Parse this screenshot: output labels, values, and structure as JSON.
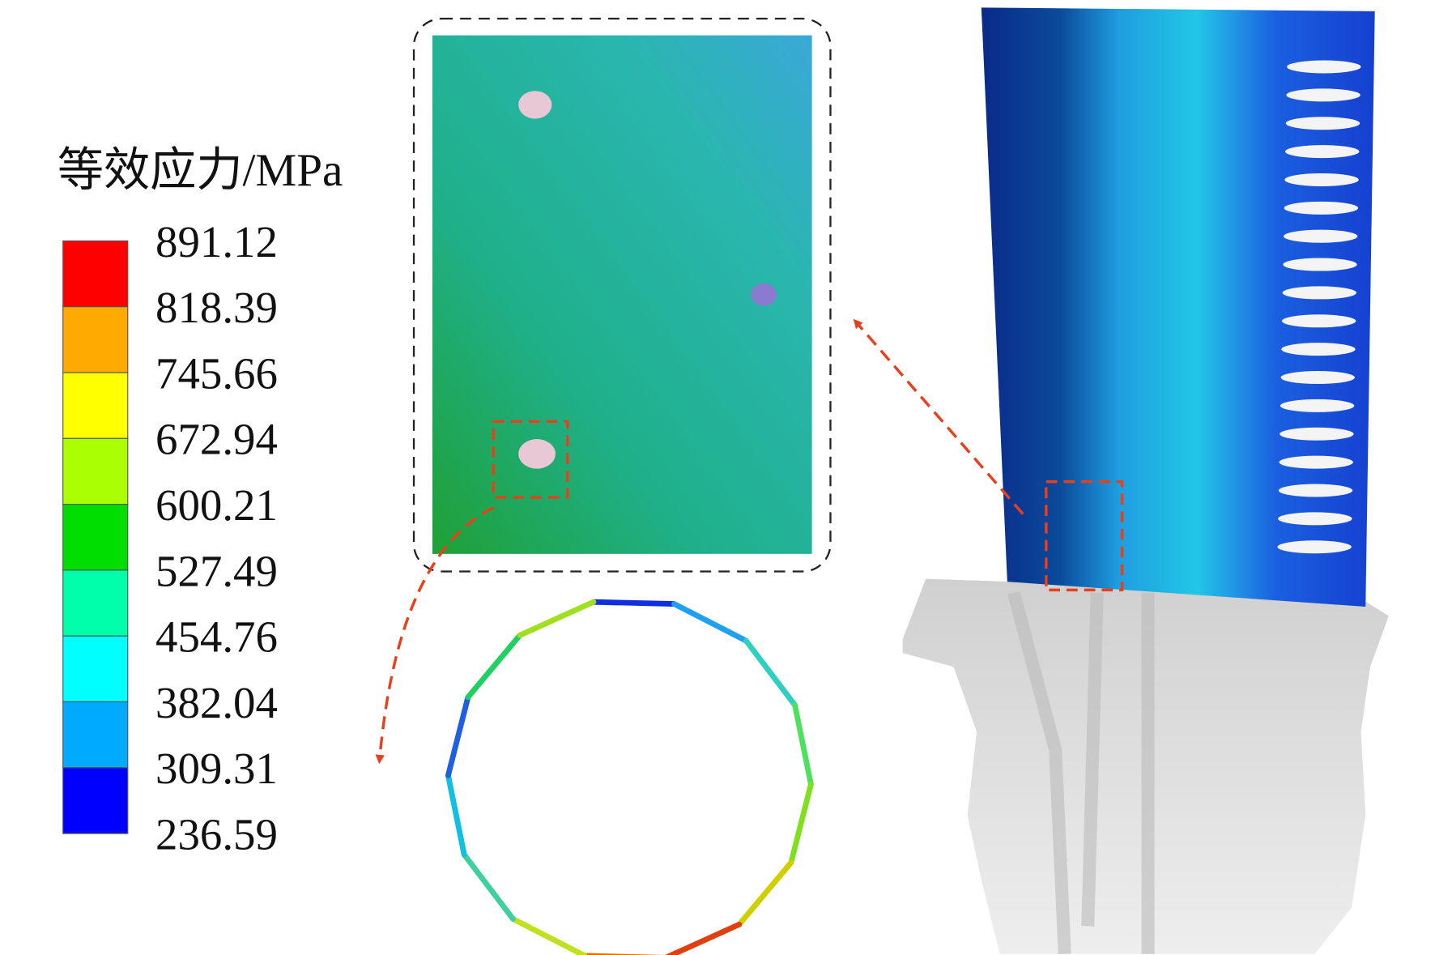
{
  "legend": {
    "title": "等效应力/MPa",
    "labels": [
      "891.12",
      "818.39",
      "745.66",
      "672.94",
      "600.21",
      "527.49",
      "454.76",
      "382.04",
      "309.31",
      "236.59"
    ],
    "colors": [
      "#ff0000",
      "#ffaa00",
      "#ffff00",
      "#aaff00",
      "#00dd00",
      "#00ffaa",
      "#00ffff",
      "#00aaff",
      "#0000ff"
    ]
  }
}
